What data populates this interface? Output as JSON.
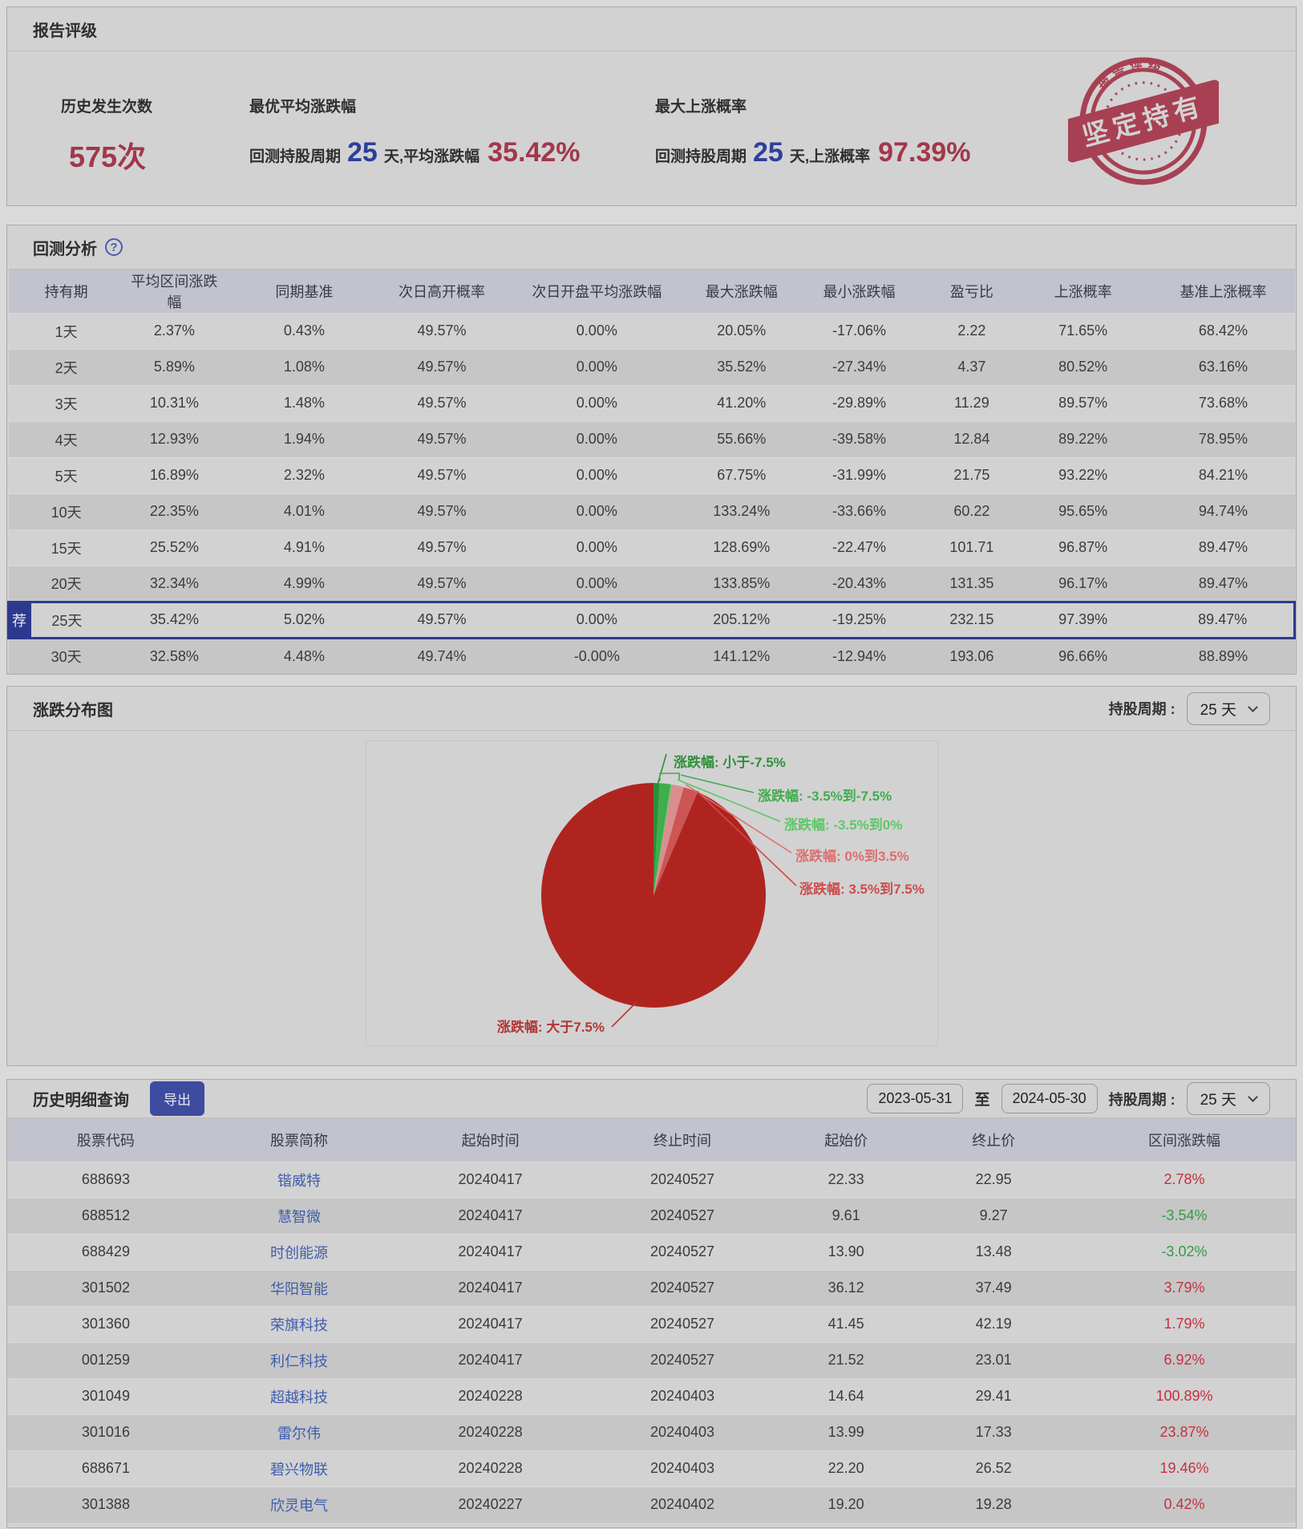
{
  "rating": {
    "title": "报告评级",
    "stats": [
      {
        "label": "历史发生次数",
        "value": "575次"
      },
      {
        "label": "最优平均涨跌幅",
        "prefix": "回测持股周期",
        "days": "25",
        "mid": "天,平均涨跌幅",
        "value": "35.42%"
      },
      {
        "label": "最大上涨概率",
        "prefix": "回测持股周期",
        "days": "25",
        "mid": "天,上涨概率",
        "value": "97.39%"
      }
    ],
    "stamp": {
      "arc_text": "报告评级",
      "banner": "坚定持有",
      "color": "#a32c42"
    }
  },
  "backtest": {
    "title": "回测分析",
    "help_icon": "?",
    "columns": [
      "持有期",
      "平均区间涨跌幅",
      "同期基准",
      "次日高开概率",
      "次日开盘平均涨跌幅",
      "最大涨跌幅",
      "最小涨跌幅",
      "盈亏比",
      "上涨概率",
      "基准上涨概率"
    ],
    "recommend_badge": "荐",
    "recommended_row_index": 8,
    "rows": [
      [
        "1天",
        "2.37%",
        "0.43%",
        "49.57%",
        "0.00%",
        "20.05%",
        "-17.06%",
        "2.22",
        "71.65%",
        "68.42%"
      ],
      [
        "2天",
        "5.89%",
        "1.08%",
        "49.57%",
        "0.00%",
        "35.52%",
        "-27.34%",
        "4.37",
        "80.52%",
        "63.16%"
      ],
      [
        "3天",
        "10.31%",
        "1.48%",
        "49.57%",
        "0.00%",
        "41.20%",
        "-29.89%",
        "11.29",
        "89.57%",
        "73.68%"
      ],
      [
        "4天",
        "12.93%",
        "1.94%",
        "49.57%",
        "0.00%",
        "55.66%",
        "-39.58%",
        "12.84",
        "89.22%",
        "78.95%"
      ],
      [
        "5天",
        "16.89%",
        "2.32%",
        "49.57%",
        "0.00%",
        "67.75%",
        "-31.99%",
        "21.75",
        "93.22%",
        "84.21%"
      ],
      [
        "10天",
        "22.35%",
        "4.01%",
        "49.57%",
        "0.00%",
        "133.24%",
        "-33.66%",
        "60.22",
        "95.65%",
        "94.74%"
      ],
      [
        "15天",
        "25.52%",
        "4.91%",
        "49.57%",
        "0.00%",
        "128.69%",
        "-22.47%",
        "101.71",
        "96.87%",
        "89.47%"
      ],
      [
        "20天",
        "32.34%",
        "4.99%",
        "49.57%",
        "0.00%",
        "133.85%",
        "-20.43%",
        "131.35",
        "96.17%",
        "89.47%"
      ],
      [
        "25天",
        "35.42%",
        "5.02%",
        "49.57%",
        "0.00%",
        "205.12%",
        "-19.25%",
        "232.15",
        "97.39%",
        "89.47%"
      ],
      [
        "30天",
        "32.58%",
        "4.48%",
        "49.74%",
        "-0.00%",
        "141.12%",
        "-12.94%",
        "193.06",
        "96.66%",
        "88.89%"
      ]
    ]
  },
  "distribution": {
    "title": "涨跌分布图",
    "period_label": "持股周期 :",
    "period_value": "25 天"
  },
  "chart_data": {
    "type": "pie",
    "title": "涨跌分布图",
    "holding_period": "25 天",
    "legend_position": "callout-labels",
    "slices": [
      {
        "label": "涨跌幅: 小于-7.5%",
        "value": 0.87,
        "color": "#2e8f39",
        "label_color": "#2e9139"
      },
      {
        "label": "涨跌幅: -3.5%到-7.5%",
        "value": 1.57,
        "color": "#3fae4c",
        "label_color": "#3fae4c"
      },
      {
        "label": "涨跌幅: -3.5%到0%",
        "value": 0.17,
        "color": "#63c96e",
        "label_color": "#5dc768"
      },
      {
        "label": "涨跌幅: 0%到3.5%",
        "value": 1.74,
        "color": "#d98f8f",
        "label_color": "#dd6f6f"
      },
      {
        "label": "涨跌幅: 3.5%到7.5%",
        "value": 2.09,
        "color": "#cd5555",
        "label_color": "#cf4b4b"
      },
      {
        "label": "涨跌幅: 大于7.5%",
        "value": 93.56,
        "color": "#b02420",
        "label_color": "#b23535"
      }
    ]
  },
  "history": {
    "title": "历史明细查询",
    "export_label": "导出",
    "date_from": "2023-05-31",
    "range_separator": "至",
    "date_to": "2024-05-30",
    "period_label": "持股周期 :",
    "period_value": "25 天",
    "columns": [
      "股票代码",
      "股票简称",
      "起始时间",
      "终止时间",
      "起始价",
      "终止价",
      "区间涨跌幅"
    ],
    "rows": [
      [
        "688693",
        "锴威特",
        "20240417",
        "20240527",
        "22.33",
        "22.95",
        "2.78%"
      ],
      [
        "688512",
        "慧智微",
        "20240417",
        "20240527",
        "9.61",
        "9.27",
        "-3.54%"
      ],
      [
        "688429",
        "时创能源",
        "20240417",
        "20240527",
        "13.90",
        "13.48",
        "-3.02%"
      ],
      [
        "301502",
        "华阳智能",
        "20240417",
        "20240527",
        "36.12",
        "37.49",
        "3.79%"
      ],
      [
        "301360",
        "荣旗科技",
        "20240417",
        "20240527",
        "41.45",
        "42.19",
        "1.79%"
      ],
      [
        "001259",
        "利仁科技",
        "20240417",
        "20240527",
        "21.52",
        "23.01",
        "6.92%"
      ],
      [
        "301049",
        "超越科技",
        "20240228",
        "20240403",
        "14.64",
        "29.41",
        "100.89%"
      ],
      [
        "301016",
        "雷尔伟",
        "20240228",
        "20240403",
        "13.99",
        "17.33",
        "23.87%"
      ],
      [
        "688671",
        "碧兴物联",
        "20240228",
        "20240403",
        "22.20",
        "26.52",
        "19.46%"
      ],
      [
        "301388",
        "欣灵电气",
        "20240227",
        "20240402",
        "19.20",
        "19.28",
        "0.42%"
      ]
    ]
  }
}
